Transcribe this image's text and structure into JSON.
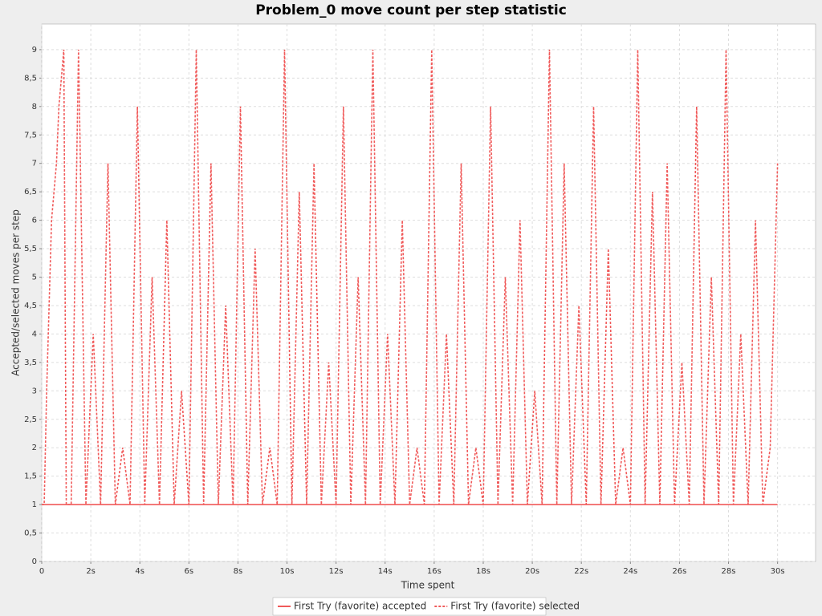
{
  "chart_data": {
    "type": "line",
    "title": "Problem_0 move count per step statistic",
    "x_label": "Time spent",
    "y_label": "Accepted/selected moves per step",
    "xlim": [
      0,
      31.55
    ],
    "ylim": [
      0,
      9.45
    ],
    "xticks": [
      0,
      {
        "value": 2,
        "label": "2s"
      },
      {
        "value": 4,
        "label": "4s"
      },
      {
        "value": 6,
        "label": "6s"
      },
      {
        "value": 8,
        "label": "8s"
      },
      {
        "value": 10,
        "label": "10s"
      },
      {
        "value": 12,
        "label": "12s"
      },
      {
        "value": 14,
        "label": "14s"
      },
      {
        "value": 16,
        "label": "16s"
      },
      {
        "value": 18,
        "label": "18s"
      },
      {
        "value": 20,
        "label": "20s"
      },
      {
        "value": 22,
        "label": "22s"
      },
      {
        "value": 24,
        "label": "24s"
      },
      {
        "value": 26,
        "label": "26s"
      },
      {
        "value": 28,
        "label": "28s"
      },
      {
        "value": 30,
        "label": "30s"
      }
    ],
    "yticks": [
      0,
      {
        "value": 0.5,
        "label": "0,5"
      },
      1,
      {
        "value": 1.5,
        "label": "1,5"
      },
      2,
      {
        "value": 2.5,
        "label": "2,5"
      },
      3,
      {
        "value": 3.5,
        "label": "3,5"
      },
      4,
      {
        "value": 4.5,
        "label": "4,5"
      },
      5,
      {
        "value": 5.5,
        "label": "5,5"
      },
      6,
      {
        "value": 6.5,
        "label": "6,5"
      },
      7,
      {
        "value": 7.5,
        "label": "7,5"
      },
      8,
      {
        "value": 8.5,
        "label": "8,5"
      },
      9
    ],
    "grid": true,
    "legend": "bottom",
    "series": [
      {
        "name": "First Try (favorite) accepted",
        "color": "#f05a5a",
        "dash": false,
        "x": [
          0,
          30
        ],
        "values": [
          1,
          1
        ]
      },
      {
        "name": "First Try (favorite) selected",
        "color": "#f05a5a",
        "dash": true,
        "x": [
          0,
          0.1,
          0.2,
          0.4,
          0.6,
          0.7,
          0.9,
          1.0,
          1.2,
          1.5,
          1.8,
          2.1,
          2.4,
          2.7,
          3.0,
          3.3,
          3.6,
          3.9,
          4.2,
          4.5,
          4.8,
          5.1,
          5.4,
          5.7,
          6.0,
          6.3,
          6.6,
          6.9,
          7.2,
          7.5,
          7.8,
          8.1,
          8.4,
          8.7,
          9.0,
          9.3,
          9.6,
          9.9,
          10.2,
          10.5,
          10.8,
          11.1,
          11.4,
          11.7,
          12.0,
          12.3,
          12.6,
          12.9,
          13.2,
          13.5,
          13.8,
          14.1,
          14.4,
          14.7,
          15.0,
          15.3,
          15.6,
          15.9,
          16.2,
          16.5,
          16.8,
          17.1,
          17.4,
          17.7,
          18.0,
          18.3,
          18.6,
          18.9,
          19.2,
          19.5,
          19.8,
          20.1,
          20.4,
          20.7,
          21.0,
          21.3,
          21.6,
          21.9,
          22.2,
          22.5,
          22.8,
          23.1,
          23.4,
          23.7,
          24.0,
          24.3,
          24.6,
          24.9,
          25.2,
          25.5,
          25.8,
          26.1,
          26.4,
          26.7,
          27.0,
          27.3,
          27.6,
          27.9,
          28.2,
          28.5,
          28.8,
          29.1,
          29.4,
          29.7,
          30.0
        ],
        "values": [
          1,
          1,
          3,
          6,
          7,
          8,
          9,
          1,
          1,
          9,
          1,
          4,
          1,
          7,
          1,
          2,
          1,
          8,
          1,
          5,
          1,
          6,
          1,
          3,
          1,
          9,
          1,
          7,
          1,
          4.5,
          1,
          8,
          1,
          5.5,
          1,
          2,
          1,
          9,
          1,
          6.5,
          1,
          7,
          1,
          3.5,
          1,
          8,
          1,
          5,
          1,
          9,
          1,
          4,
          1,
          6,
          1,
          2,
          1,
          9,
          1,
          4,
          1,
          7,
          1,
          2,
          1,
          8,
          1,
          5,
          1,
          6,
          1,
          3,
          1,
          9,
          1,
          7,
          1,
          4.5,
          1,
          8,
          1,
          5.5,
          1,
          2,
          1,
          9,
          1,
          6.5,
          1,
          7,
          1,
          3.5,
          1,
          8,
          1,
          5,
          1,
          9,
          1,
          4,
          1,
          6,
          1,
          2,
          7
        ]
      }
    ]
  }
}
